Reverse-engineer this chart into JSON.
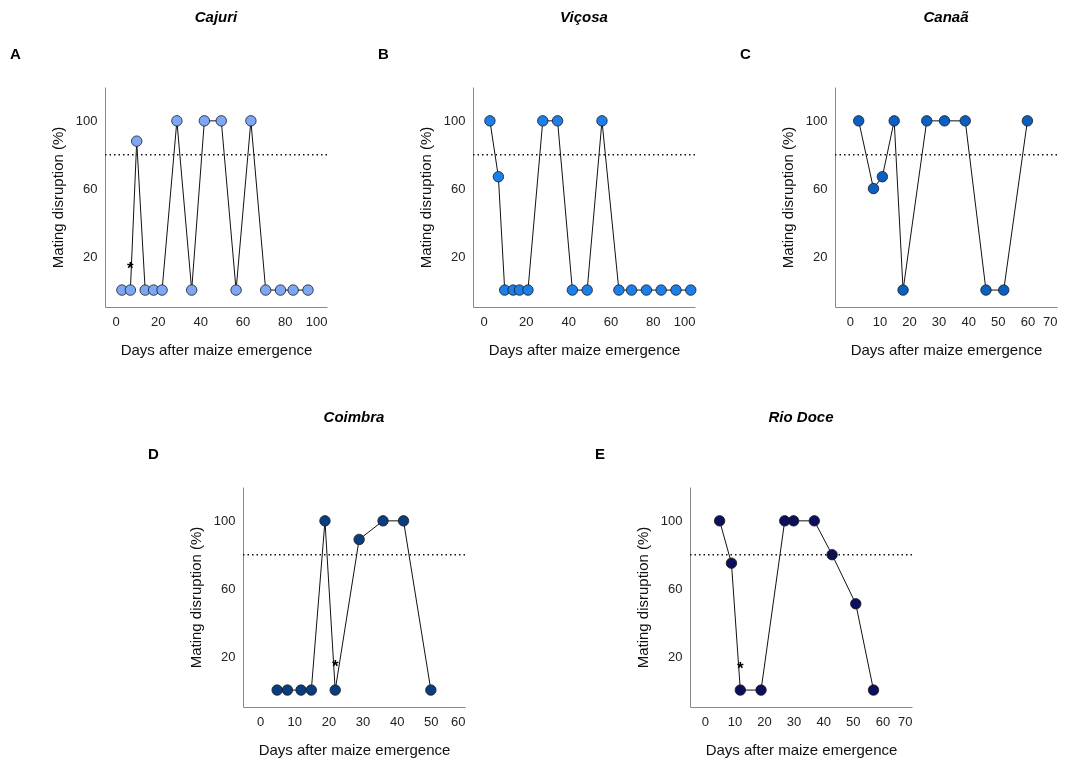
{
  "chart_data": [
    {
      "type": "line",
      "title": "Cajuri",
      "xlabel": "Days after maize emergence",
      "ylabel": "Mating disruption (%)",
      "marker": "circle",
      "line_style": "solid",
      "x": [
        3,
        7,
        10,
        14,
        18,
        22,
        29,
        36,
        42,
        50,
        57,
        64,
        71,
        78,
        84,
        91
      ],
      "series": [
        {
          "color": "#7da7f5",
          "values": [
            0,
            0,
            88,
            0,
            0,
            0,
            100,
            0,
            100,
            100,
            0,
            100,
            0,
            0,
            0,
            0
          ]
        }
      ],
      "xlim": [
        -5,
        100
      ],
      "xticks": [
        0,
        20,
        40,
        60,
        80,
        100
      ],
      "ylim": [
        -10,
        120
      ],
      "yticks": [
        20,
        60,
        100
      ],
      "ref_lines": [
        {
          "axis": "y",
          "value": 80,
          "line_style": "dotted"
        }
      ],
      "annotations": [
        "A",
        {
          "text": "*",
          "x": 7,
          "y": 9
        }
      ]
    },
    {
      "type": "line",
      "title": "Viçosa",
      "xlabel": "Days after maize emergence",
      "ylabel": "Mating disruption (%)",
      "marker": "circle",
      "line_style": "solid",
      "x": [
        3,
        7,
        10,
        14,
        17,
        21,
        28,
        35,
        42,
        49,
        56,
        64,
        70,
        77,
        84,
        91,
        98
      ],
      "series": [
        {
          "color": "#1c7ee8",
          "values": [
            100,
            67,
            0,
            0,
            0,
            0,
            100,
            100,
            0,
            0,
            100,
            0,
            0,
            0,
            0,
            0,
            0
          ]
        }
      ],
      "xlim": [
        -5,
        100
      ],
      "xticks": [
        0,
        20,
        40,
        60,
        80,
        100
      ],
      "ylim": [
        -10,
        120
      ],
      "yticks": [
        20,
        60,
        100
      ],
      "ref_lines": [
        {
          "axis": "y",
          "value": 80,
          "line_style": "dotted"
        }
      ],
      "annotations": [
        "B"
      ]
    },
    {
      "type": "line",
      "title": "Canaã",
      "xlabel": "Days after maize emergence",
      "ylabel": "Mating disruption (%)",
      "marker": "circle",
      "line_style": "solid",
      "x": [
        3,
        8,
        11,
        15,
        18,
        26,
        32,
        39,
        46,
        52,
        60
      ],
      "series": [
        {
          "color": "#0b5fc0",
          "values": [
            100,
            60,
            67,
            100,
            0,
            100,
            100,
            100,
            0,
            0,
            100
          ]
        }
      ],
      "xlim": [
        -5,
        70
      ],
      "xticks": [
        0,
        10,
        20,
        30,
        40,
        50,
        60,
        70
      ],
      "ylim": [
        -10,
        120
      ],
      "yticks": [
        20,
        60,
        100
      ],
      "ref_lines": [
        {
          "axis": "y",
          "value": 80,
          "line_style": "dotted"
        }
      ],
      "annotations": [
        "C"
      ]
    },
    {
      "type": "line",
      "title": "Coimbra",
      "xlabel": "Days after maize emergence",
      "ylabel": "Mating disruption (%)",
      "marker": "circle",
      "line_style": "solid",
      "x": [
        5,
        8,
        12,
        15,
        19,
        22,
        29,
        36,
        42,
        50
      ],
      "series": [
        {
          "color": "#0a3d80",
          "values": [
            0,
            0,
            0,
            0,
            100,
            0,
            89,
            100,
            100,
            0
          ]
        }
      ],
      "xlim": [
        -5,
        60
      ],
      "xticks": [
        0,
        10,
        20,
        30,
        40,
        50,
        60
      ],
      "ylim": [
        -10,
        120
      ],
      "yticks": [
        20,
        60,
        100
      ],
      "ref_lines": [
        {
          "axis": "y",
          "value": 80,
          "line_style": "dotted"
        }
      ],
      "annotations": [
        "D",
        {
          "text": "*",
          "x": 22,
          "y": 10
        }
      ]
    },
    {
      "type": "line",
      "title": "Rio Doce",
      "xlabel": "Days after maize emergence",
      "ylabel": "Mating disruption (%)",
      "marker": "circle",
      "line_style": "solid",
      "x": [
        5,
        9,
        12,
        19,
        27,
        30,
        37,
        43,
        51,
        57
      ],
      "series": [
        {
          "color": "#0b0f5c",
          "values": [
            100,
            75,
            0,
            0,
            100,
            100,
            100,
            80,
            51,
            0
          ]
        }
      ],
      "xlim": [
        -5,
        70
      ],
      "xticks": [
        0,
        10,
        20,
        30,
        40,
        50,
        60,
        70
      ],
      "ylim": [
        -10,
        120
      ],
      "yticks": [
        20,
        60,
        100
      ],
      "ref_lines": [
        {
          "axis": "y",
          "value": 80,
          "line_style": "dotted"
        }
      ],
      "annotations": [
        "E",
        {
          "text": "*",
          "x": 12,
          "y": 9
        }
      ]
    }
  ]
}
